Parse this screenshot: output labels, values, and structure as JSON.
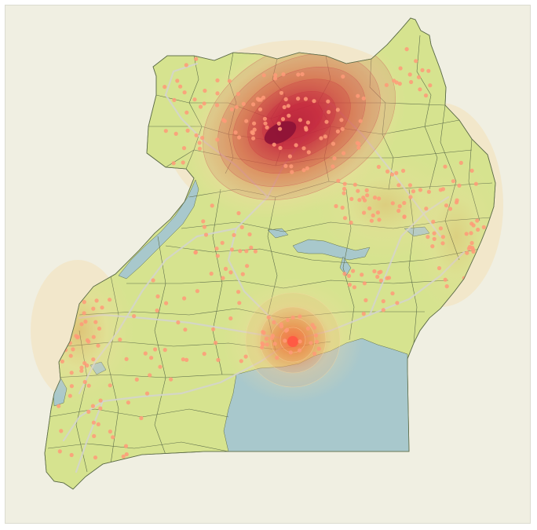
{
  "map": {
    "colors": {
      "background": "#f0efe2",
      "land": "#d6e38f",
      "water": "#a8c8cc",
      "border": "#5f6e4a",
      "road": "#d3d3cf",
      "point": "#ff9a78",
      "heat_low": "#f6d9a0",
      "heat_mid": "#f08a4b",
      "heat_high": "#c8283e",
      "heat_peak": "#8c1236"
    },
    "layers": [
      "water-bodies",
      "district-borders",
      "roads",
      "event-points",
      "density-heatmap"
    ],
    "hotspots": [
      {
        "name": "north-central-hotspot",
        "intensity": 1.0
      },
      {
        "name": "central-hotspot",
        "intensity": 0.7
      },
      {
        "name": "west-hotspot",
        "intensity": 0.35
      }
    ]
  }
}
